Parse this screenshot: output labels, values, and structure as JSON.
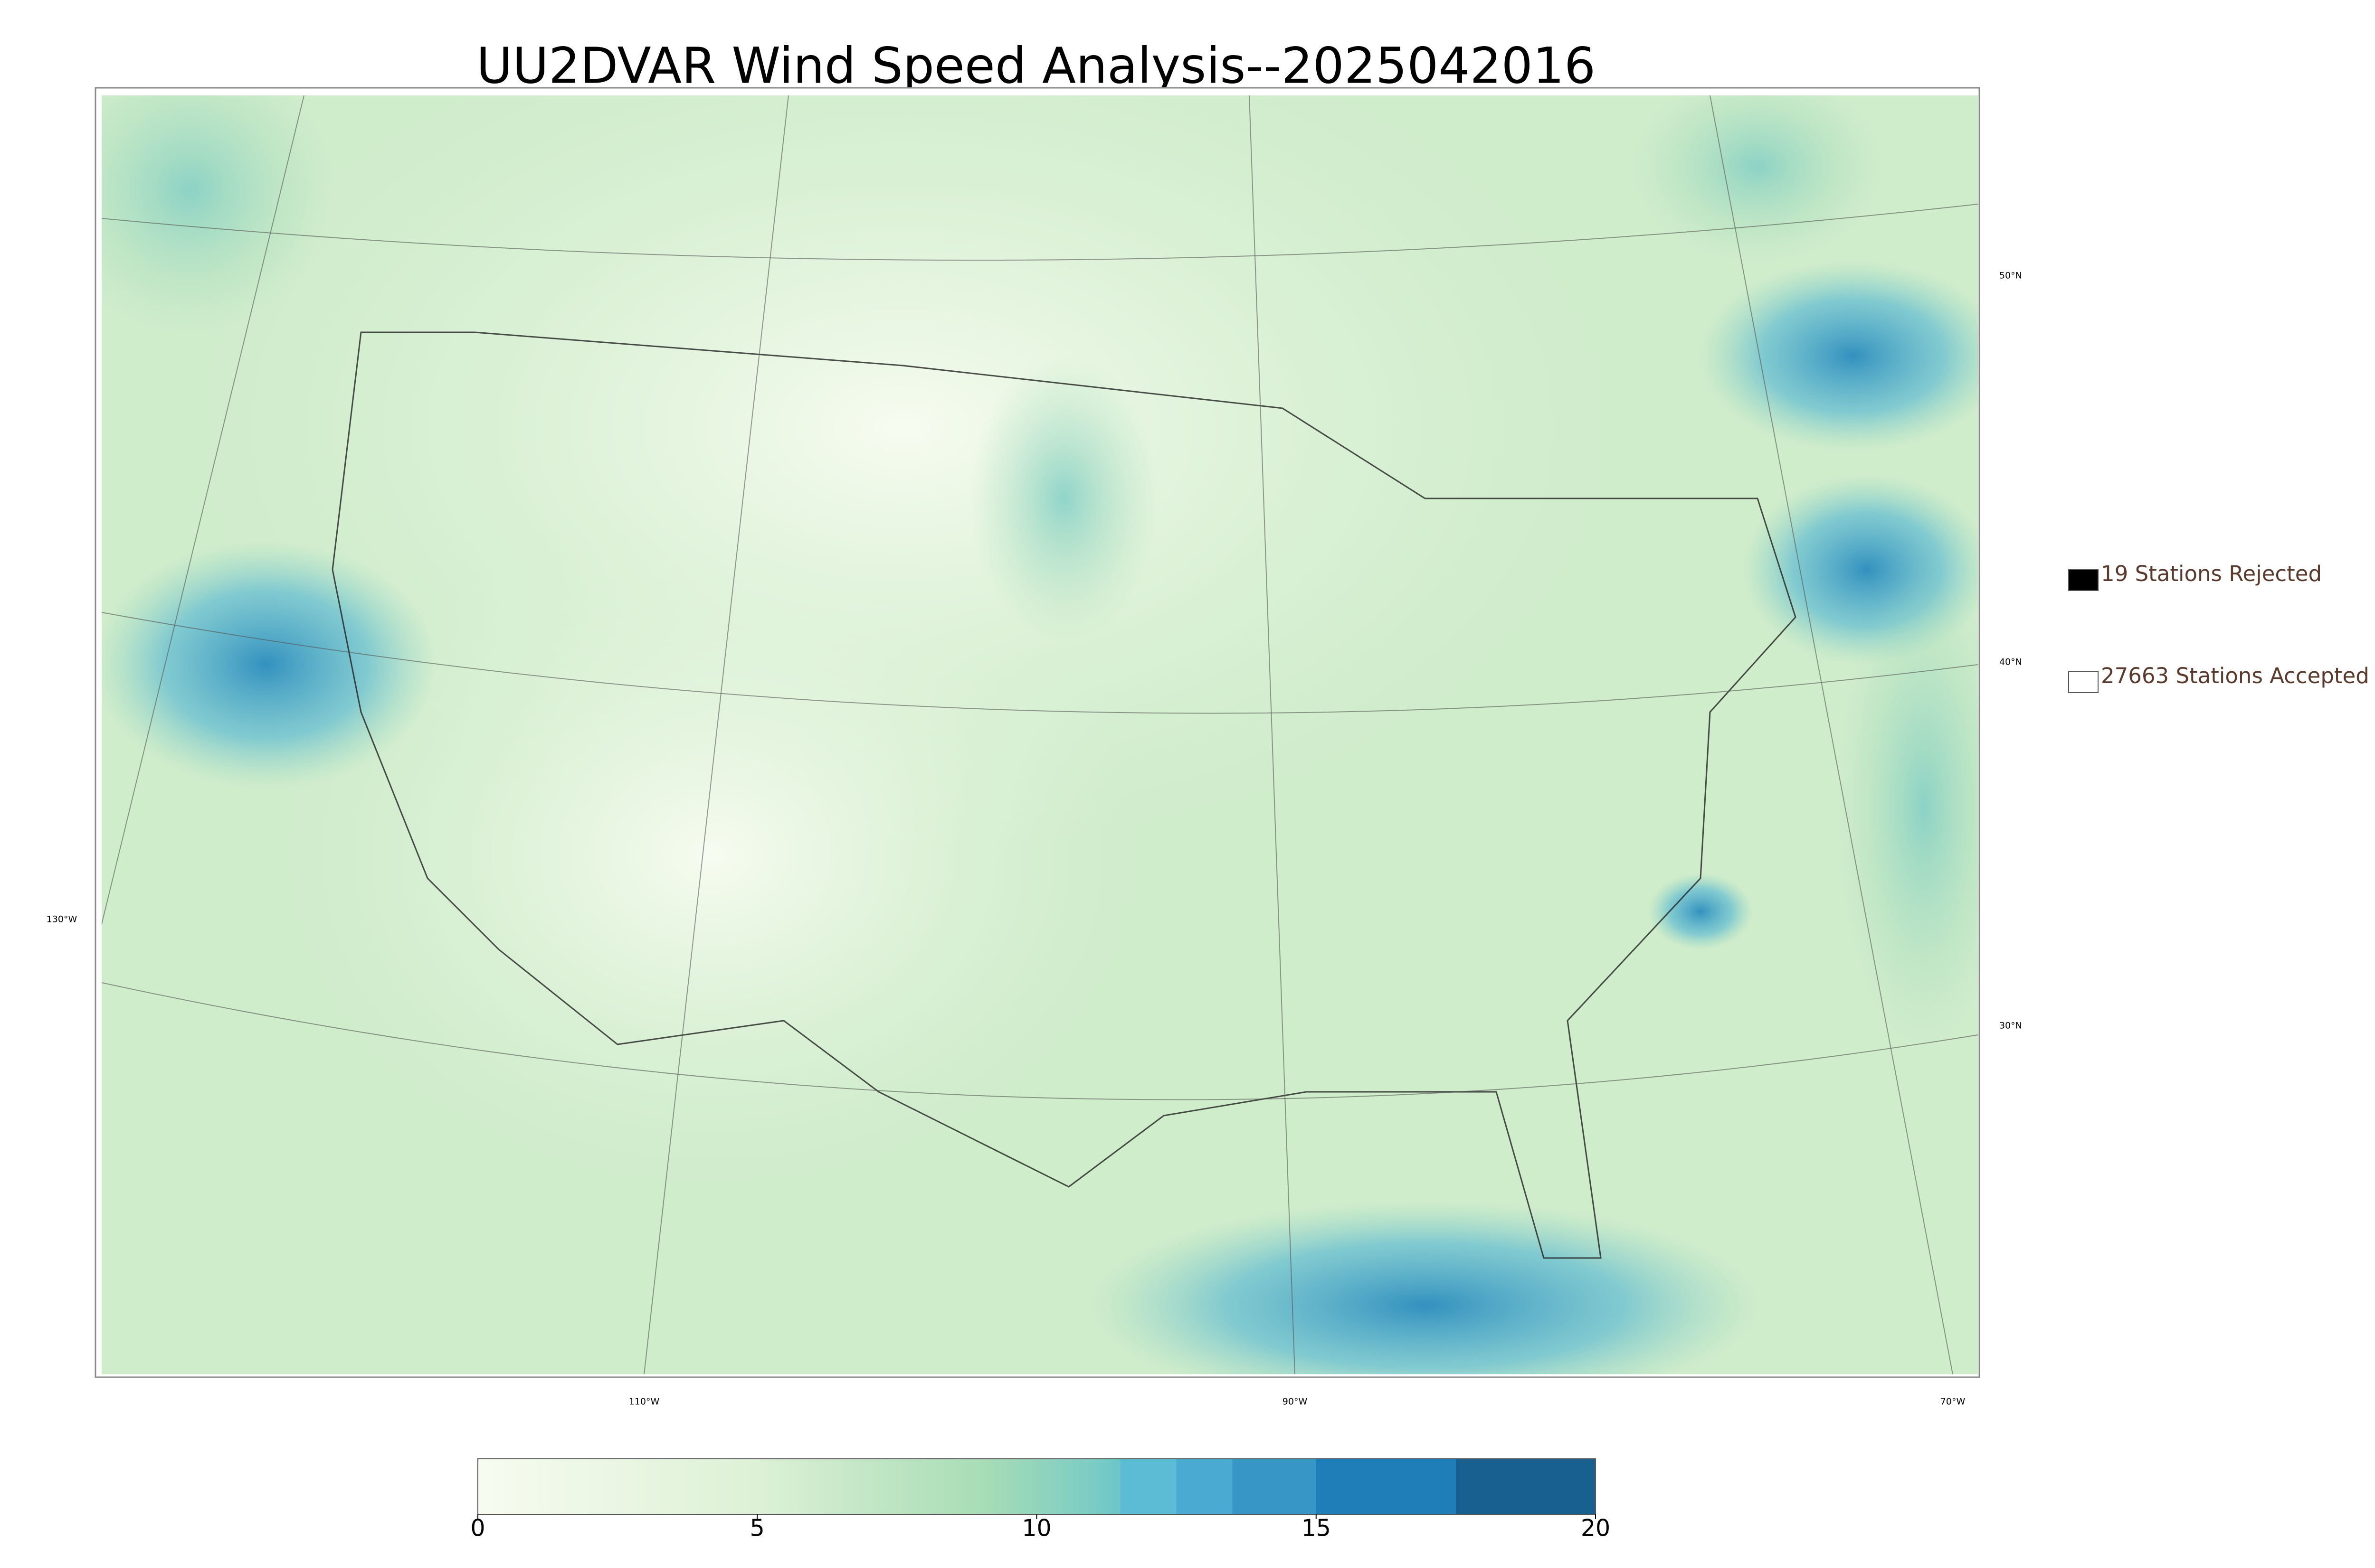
{
  "title": "UU2DVAR Wind Speed Analysis--2025042016",
  "legend": [
    {
      "label": "19 Stations Rejected",
      "fill": "#000000"
    },
    {
      "label": "27663 Stations Accepted",
      "fill": "#ffffff"
    }
  ],
  "map": {
    "lat_labels": [
      "50°N",
      "40°N",
      "30°N"
    ],
    "lon_labels": [
      "130°W",
      "110°W",
      "90°W",
      "70°W"
    ]
  },
  "colorbar": {
    "range": [
      0,
      20
    ],
    "ticks": [
      0,
      5,
      10,
      15,
      20
    ]
  }
}
